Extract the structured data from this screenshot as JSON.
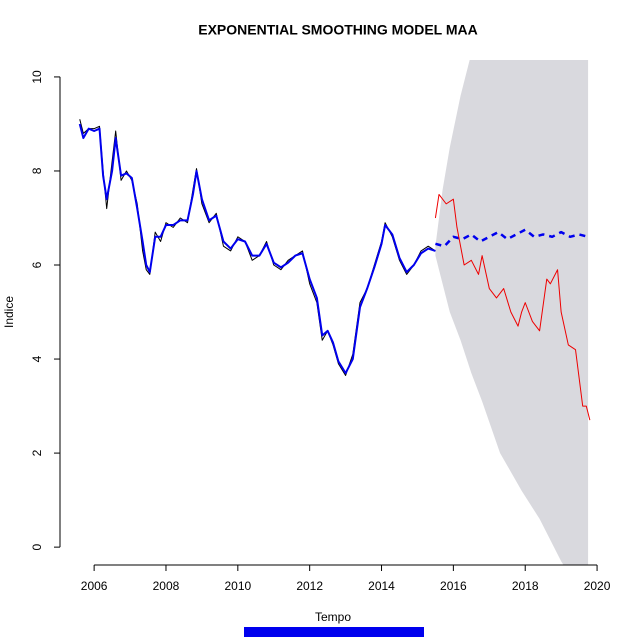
{
  "chart_data": {
    "type": "line",
    "title": "EXPONENTIAL SMOOTHING MODEL MAA",
    "x_label": "Tempo",
    "y_label": "Indice",
    "xlim": [
      2005.05,
      2020.36
    ],
    "ylim": [
      -0.38,
      10.36
    ],
    "xticks": [
      2006,
      2008,
      2010,
      2012,
      2014,
      2016,
      2018,
      2020
    ],
    "yticks": [
      0,
      2,
      4,
      6,
      8,
      10
    ],
    "interval": {
      "color": "#d9d9de",
      "x": [
        2015.5,
        2015.7,
        2015.9,
        2016.2,
        2016.5,
        2016.8,
        2017.3,
        2017.9,
        2018.4,
        2019.0,
        2019.75
      ],
      "upper": [
        6.4,
        7.6,
        8.5,
        9.6,
        10.5,
        11.1,
        11.8,
        12.5,
        13.0,
        13.5,
        14.0
      ],
      "lower": [
        6.2,
        5.6,
        5.0,
        4.4,
        3.7,
        3.1,
        2.0,
        1.2,
        0.6,
        -0.3,
        -1.2
      ]
    },
    "series": [
      {
        "color": "#000000",
        "width": 1,
        "x": [
          2005.6,
          2005.7,
          2005.85,
          2006.0,
          2006.15,
          2006.25,
          2006.35,
          2006.5,
          2006.6,
          2006.75,
          2006.9,
          2007.05,
          2007.2,
          2007.35,
          2007.45,
          2007.55,
          2007.7,
          2007.85,
          2008.0,
          2008.2,
          2008.4,
          2008.6,
          2008.75,
          2008.85,
          2009.0,
          2009.2,
          2009.4,
          2009.6,
          2009.8,
          2010.0,
          2010.2,
          2010.4,
          2010.6,
          2010.8,
          2011.0,
          2011.2,
          2011.4,
          2011.6,
          2011.8,
          2012.0,
          2012.2,
          2012.35,
          2012.5,
          2012.65,
          2012.8,
          2013.0,
          2013.2,
          2013.4,
          2013.6,
          2013.8,
          2014.0,
          2014.1,
          2014.3,
          2014.5,
          2014.7,
          2014.9,
          2015.1,
          2015.3,
          2015.5
        ],
        "values": [
          9.1,
          8.8,
          8.9,
          8.9,
          8.95,
          8.0,
          7.2,
          8.2,
          8.85,
          7.8,
          8.0,
          7.8,
          7.3,
          6.3,
          5.9,
          5.8,
          6.7,
          6.5,
          6.9,
          6.8,
          7.0,
          6.9,
          7.6,
          8.05,
          7.3,
          6.9,
          7.1,
          6.4,
          6.3,
          6.6,
          6.5,
          6.1,
          6.2,
          6.5,
          6.0,
          5.9,
          6.1,
          6.2,
          6.3,
          5.6,
          5.2,
          4.4,
          4.6,
          4.3,
          3.9,
          3.65,
          4.1,
          5.2,
          5.5,
          6.0,
          6.5,
          6.9,
          6.6,
          6.1,
          5.8,
          6.0,
          6.3,
          6.4,
          6.3
        ]
      },
      {
        "color": "#0000ee",
        "width": 2,
        "x": [
          2005.6,
          2005.7,
          2005.85,
          2006.0,
          2006.15,
          2006.25,
          2006.35,
          2006.5,
          2006.6,
          2006.75,
          2006.9,
          2007.05,
          2007.2,
          2007.35,
          2007.45,
          2007.55,
          2007.7,
          2007.85,
          2008.0,
          2008.2,
          2008.4,
          2008.6,
          2008.75,
          2008.85,
          2009.0,
          2009.2,
          2009.4,
          2009.6,
          2009.8,
          2010.0,
          2010.2,
          2010.4,
          2010.6,
          2010.8,
          2011.0,
          2011.2,
          2011.4,
          2011.6,
          2011.8,
          2012.0,
          2012.2,
          2012.35,
          2012.5,
          2012.65,
          2012.8,
          2013.0,
          2013.2,
          2013.4,
          2013.6,
          2013.8,
          2014.0,
          2014.1,
          2014.3,
          2014.5,
          2014.7,
          2014.9,
          2015.1,
          2015.3,
          2015.5
        ],
        "values": [
          9.0,
          8.7,
          8.9,
          8.85,
          8.9,
          7.9,
          7.4,
          8.0,
          8.7,
          7.9,
          7.95,
          7.85,
          7.2,
          6.5,
          6.0,
          5.85,
          6.6,
          6.6,
          6.85,
          6.85,
          6.95,
          6.95,
          7.5,
          8.0,
          7.4,
          6.95,
          7.05,
          6.5,
          6.35,
          6.55,
          6.5,
          6.2,
          6.2,
          6.45,
          6.05,
          5.95,
          6.05,
          6.2,
          6.25,
          5.7,
          5.3,
          4.5,
          4.6,
          4.35,
          3.95,
          3.7,
          4.0,
          5.1,
          5.5,
          5.95,
          6.45,
          6.85,
          6.65,
          6.15,
          5.85,
          6.0,
          6.25,
          6.35,
          6.3
        ]
      },
      {
        "color": "#0000ee",
        "width": 2.5,
        "dash": true,
        "x": [
          2015.5,
          2015.75,
          2016.0,
          2016.25,
          2016.5,
          2016.75,
          2017.0,
          2017.25,
          2017.5,
          2017.75,
          2018.0,
          2018.25,
          2018.5,
          2018.75,
          2019.0,
          2019.25,
          2019.5,
          2019.75
        ],
        "values": [
          6.45,
          6.4,
          6.6,
          6.55,
          6.65,
          6.5,
          6.6,
          6.7,
          6.55,
          6.65,
          6.75,
          6.6,
          6.65,
          6.6,
          6.7,
          6.6,
          6.65,
          6.6
        ]
      },
      {
        "color": "#ee0000",
        "width": 1,
        "x": [
          2015.5,
          2015.6,
          2015.8,
          2016.0,
          2016.1,
          2016.3,
          2016.5,
          2016.7,
          2016.8,
          2017.0,
          2017.2,
          2017.4,
          2017.6,
          2017.8,
          2017.9,
          2018.0,
          2018.2,
          2018.4,
          2018.6,
          2018.7,
          2018.9,
          2019.0,
          2019.2,
          2019.4,
          2019.5,
          2019.6,
          2019.7,
          2019.8
        ],
        "values": [
          7.0,
          7.5,
          7.3,
          7.4,
          6.8,
          6.0,
          6.1,
          5.8,
          6.2,
          5.5,
          5.3,
          5.5,
          5.0,
          4.7,
          5.0,
          5.2,
          4.8,
          4.6,
          5.7,
          5.6,
          5.9,
          5.0,
          4.3,
          4.2,
          3.6,
          3.0,
          3.0,
          2.7
        ]
      }
    ]
  }
}
